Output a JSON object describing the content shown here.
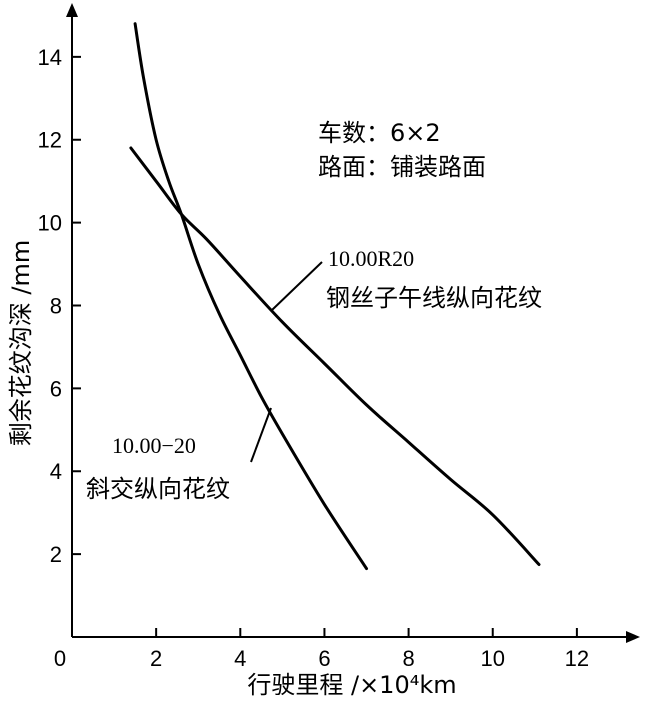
{
  "chart_data": {
    "type": "line",
    "title": "",
    "xlabel": "行驶里程 /×10⁴km",
    "ylabel": "剩余花纹沟深 /mm",
    "xlim": [
      0,
      13.5
    ],
    "ylim": [
      0,
      15.3
    ],
    "x_ticks": [
      0,
      2,
      4,
      6,
      8,
      10,
      12
    ],
    "y_ticks": [
      2,
      4,
      6,
      8,
      10,
      12,
      14
    ],
    "grid": false,
    "legend": "none",
    "info": {
      "line1": "车数：6×2",
      "line2": "路面：铺装路面"
    },
    "series": [
      {
        "name": "10.00R20 钢丝子午线纵向花纹",
        "label_code": "10.00R20",
        "label_desc": "钢丝子午线纵向花纹",
        "color": "#000000",
        "points": [
          [
            1.4,
            11.8
          ],
          [
            2.0,
            11.0
          ],
          [
            2.6,
            10.2
          ],
          [
            3.2,
            9.6
          ],
          [
            4.0,
            8.7
          ],
          [
            5.0,
            7.6
          ],
          [
            6.0,
            6.6
          ],
          [
            7.0,
            5.6
          ],
          [
            8.0,
            4.7
          ],
          [
            9.0,
            3.8
          ],
          [
            10.0,
            2.95
          ],
          [
            11.1,
            1.75
          ]
        ]
      },
      {
        "name": "10.00−20 斜交纵向花纹",
        "label_code": "10.00−20",
        "label_desc": "斜交纵向花纹",
        "color": "#000000",
        "points": [
          [
            1.5,
            14.8
          ],
          [
            1.7,
            13.5
          ],
          [
            2.0,
            12.0
          ],
          [
            2.3,
            11.0
          ],
          [
            2.6,
            10.2
          ],
          [
            3.0,
            9.0
          ],
          [
            3.5,
            7.8
          ],
          [
            4.0,
            6.8
          ],
          [
            4.5,
            5.8
          ],
          [
            5.0,
            4.9
          ],
          [
            6.0,
            3.2
          ],
          [
            7.0,
            1.65
          ]
        ]
      }
    ]
  }
}
